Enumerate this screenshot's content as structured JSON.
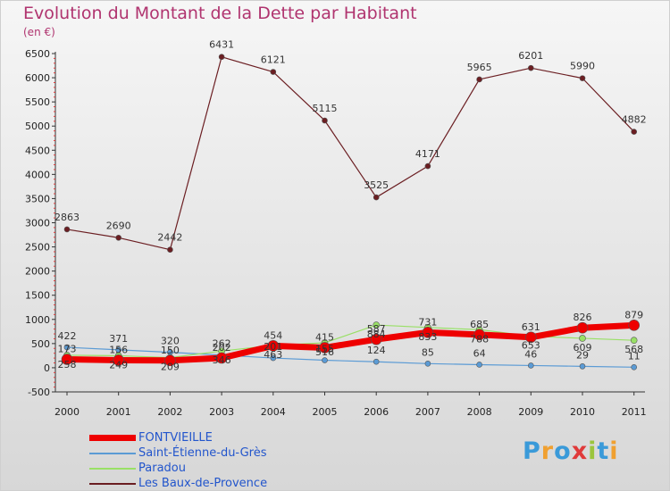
{
  "chart_data": {
    "type": "line",
    "title": "Evolution du Montant de la Dette par Habitant",
    "subtitle": "(en €)",
    "x": [
      "2000",
      "2001",
      "2002",
      "2003",
      "2004",
      "2005",
      "2006",
      "2007",
      "2008",
      "2009",
      "2010",
      "2011"
    ],
    "ylim": [
      -500,
      6500
    ],
    "yticks": [
      -500,
      0,
      500,
      1000,
      1500,
      2000,
      2500,
      3000,
      3500,
      4000,
      4500,
      5000,
      5500,
      6000,
      6500
    ],
    "grid": false,
    "legend_position": "bottom-left",
    "series": [
      {
        "name": "FONTVIEILLE",
        "color": "#ee0000",
        "values": [
          173,
          156,
          150,
          202,
          454,
          415,
          587,
          731,
          685,
          631,
          826,
          879
        ],
        "labels": [
          "173",
          "156",
          "150",
          "202",
          "454",
          "415",
          "587",
          "731",
          "685",
          "631",
          "826",
          "879"
        ]
      },
      {
        "name": "Saint-Étienne-du-Grès",
        "color": "#5b9bd5",
        "values": [
          422,
          371,
          320,
          262,
          201,
          155,
          124,
          85,
          64,
          46,
          29,
          11
        ],
        "labels": [
          "422",
          "371",
          "320",
          "262",
          "201",
          "155",
          "124",
          "85",
          "64",
          "46",
          "29",
          "11"
        ]
      },
      {
        "name": "Paradou",
        "color": "#99e066",
        "values": [
          258,
          249,
          209,
          346,
          463,
          516,
          884,
          833,
          788,
          653,
          609,
          568
        ],
        "labels": [
          "258",
          "249",
          "209",
          "346",
          "463",
          "516",
          "884",
          "833",
          "788",
          "653",
          "609",
          "568"
        ]
      },
      {
        "name": "Les Baux-de-Provence",
        "color": "#6b1e22",
        "values": [
          2863,
          2690,
          2442,
          6431,
          6121,
          5115,
          3525,
          4171,
          5965,
          6201,
          5990,
          4882
        ],
        "labels": [
          "2863",
          "2690",
          "2442",
          "6431",
          "6121",
          "5115",
          "3525",
          "4171",
          "5965",
          "6201",
          "5990",
          "4882"
        ]
      }
    ]
  },
  "brand": {
    "text": "Proxiti",
    "letters": [
      "P",
      "r",
      "o",
      "x",
      "i",
      "t",
      "i"
    ],
    "colors": [
      "#3a9ad9",
      "#f0a030",
      "#3a9ad9",
      "#e03a3a",
      "#9bc53d",
      "#3a9ad9",
      "#f0a030"
    ]
  }
}
